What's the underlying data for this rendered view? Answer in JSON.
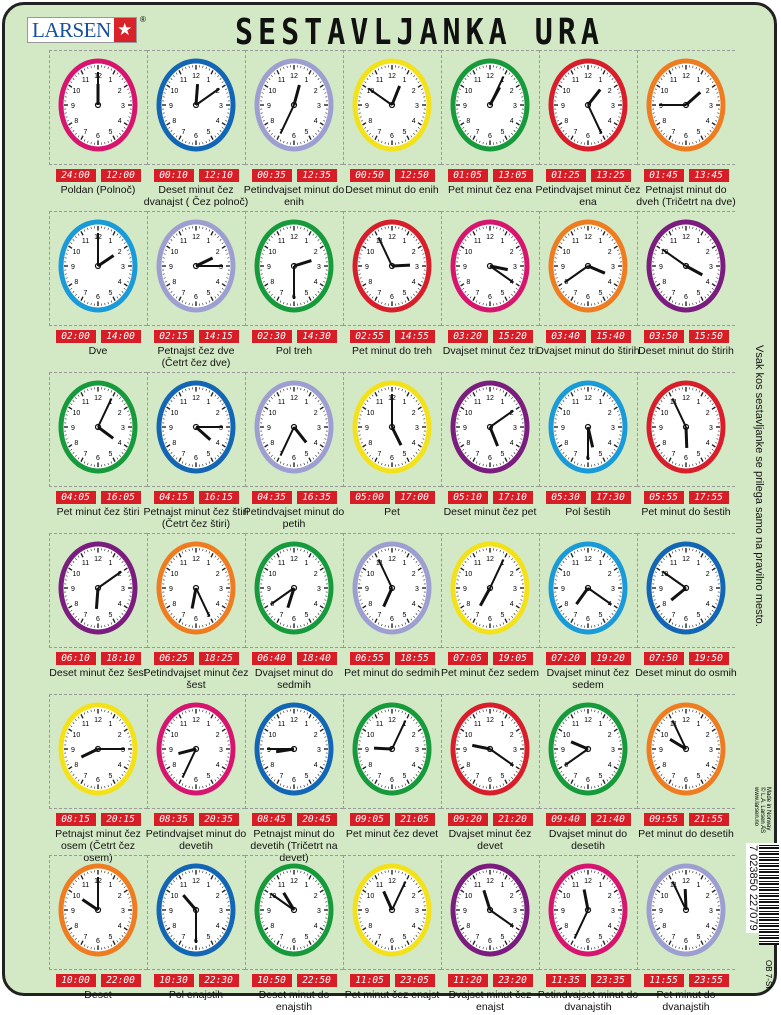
{
  "brand": {
    "name": "LARSEN",
    "mark": "®"
  },
  "title": "SESTAVLJANKA URA",
  "side_text": "Vsak kos sestavljanke se prilega samo na pravilno mesto.",
  "made_in": [
    "Made in Norway",
    "© L.A. Larsen AS",
    "www.larsen.no"
  ],
  "barcode": "7 023850 227079",
  "product_code": "OB 7-SI",
  "colors": {
    "magenta": "#d6156f",
    "blue": "#1366b3",
    "lavender": "#9c9fd0",
    "yellow": "#f3e21b",
    "green": "#179a3b",
    "red": "#d81e2a",
    "orange": "#ee7d22",
    "purple": "#7a1d7e",
    "lightblue": "#1a9ad6",
    "digital_bg": "#d71e26",
    "board": "#d3e9c5"
  },
  "clocks": [
    {
      "d24": "24:00",
      "d12": "12:00",
      "label": "Poldan (Polnoč)",
      "color": "magenta"
    },
    {
      "d24": "00:10",
      "d12": "12:10",
      "label": "Deset minut čez dvanajst ( Čez polnoč)",
      "color": "blue"
    },
    {
      "d24": "00:35",
      "d12": "12:35",
      "label": "Petindvajset minut do enih",
      "color": "lavender"
    },
    {
      "d24": "00:50",
      "d12": "12:50",
      "label": "Deset minut do enih",
      "color": "yellow"
    },
    {
      "d24": "01:05",
      "d12": "13:05",
      "label": "Pet minut čez ena",
      "color": "green"
    },
    {
      "d24": "01:25",
      "d12": "13:25",
      "label": "Petindvajset minut čez ena",
      "color": "red"
    },
    {
      "d24": "01:45",
      "d12": "13:45",
      "label": "Petnajst minut do dveh (Tričetrt na dve)",
      "color": "orange"
    },
    {
      "d24": "02:00",
      "d12": "14:00",
      "label": "Dve",
      "color": "lightblue"
    },
    {
      "d24": "02:15",
      "d12": "14:15",
      "label": "Petnajst čez dve (Četrt čez dve)",
      "color": "lavender"
    },
    {
      "d24": "02:30",
      "d12": "14:30",
      "label": "Pol treh",
      "color": "green"
    },
    {
      "d24": "02:55",
      "d12": "14:55",
      "label": "Pet minut do treh",
      "color": "red"
    },
    {
      "d24": "03:20",
      "d12": "15:20",
      "label": "Dvajset minut čez tri",
      "color": "magenta"
    },
    {
      "d24": "03:40",
      "d12": "15:40",
      "label": "Dvajset minut do štirih",
      "color": "orange"
    },
    {
      "d24": "03:50",
      "d12": "15:50",
      "label": "Deset minut do štirih",
      "color": "purple"
    },
    {
      "d24": "04:05",
      "d12": "16:05",
      "label": "Pet minut čez štiri",
      "color": "green"
    },
    {
      "d24": "04:15",
      "d12": "16:15",
      "label": "Petnajst minut čez štiri (Četrt čez štiri)",
      "color": "blue"
    },
    {
      "d24": "04:35",
      "d12": "16:35",
      "label": "Petindvajset minut do petih",
      "color": "lavender"
    },
    {
      "d24": "05:00",
      "d12": "17:00",
      "label": "Pet",
      "color": "yellow"
    },
    {
      "d24": "05:10",
      "d12": "17:10",
      "label": "Deset minut čez pet",
      "color": "purple"
    },
    {
      "d24": "05:30",
      "d12": "17:30",
      "label": "Pol šestih",
      "color": "lightblue"
    },
    {
      "d24": "05:55",
      "d12": "17:55",
      "label": "Pet minut do šestih",
      "color": "red"
    },
    {
      "d24": "06:10",
      "d12": "18:10",
      "label": "Deset minut čez šest",
      "color": "purple"
    },
    {
      "d24": "06:25",
      "d12": "18:25",
      "label": "Petindvajset minut čez šest",
      "color": "orange"
    },
    {
      "d24": "06:40",
      "d12": "18:40",
      "label": "Dvajset minut do sedmih",
      "color": "green"
    },
    {
      "d24": "06:55",
      "d12": "18:55",
      "label": "Pet minut do sedmih",
      "color": "lavender"
    },
    {
      "d24": "07:05",
      "d12": "19:05",
      "label": "Pet minut čez sedem",
      "color": "yellow"
    },
    {
      "d24": "07:20",
      "d12": "19:20",
      "label": "Dvajset minut čez sedem",
      "color": "lightblue"
    },
    {
      "d24": "07:50",
      "d12": "19:50",
      "label": "Deset minut do osmih",
      "color": "blue"
    },
    {
      "d24": "08:15",
      "d12": "20:15",
      "label": "Petnajst minut čez osem (Četrt čez osem)",
      "color": "yellow"
    },
    {
      "d24": "08:35",
      "d12": "20:35",
      "label": "Petindvajset minut do devetih",
      "color": "magenta"
    },
    {
      "d24": "08:45",
      "d12": "20:45",
      "label": "Petnajst minut do devetih (Tričetrt na devet)",
      "color": "blue"
    },
    {
      "d24": "09:05",
      "d12": "21:05",
      "label": "Pet minut čez devet",
      "color": "green"
    },
    {
      "d24": "09:20",
      "d12": "21:20",
      "label": "Dvajset minut čez devet",
      "color": "red"
    },
    {
      "d24": "09:40",
      "d12": "21:40",
      "label": "Dvajset minut do desetih",
      "color": "green"
    },
    {
      "d24": "09:55",
      "d12": "21:55",
      "label": "Pet minut do desetih",
      "color": "orange"
    },
    {
      "d24": "10:00",
      "d12": "22:00",
      "label": "Deset",
      "color": "orange"
    },
    {
      "d24": "10:30",
      "d12": "22:30",
      "label": "Pol enajstih",
      "color": "blue"
    },
    {
      "d24": "10:50",
      "d12": "22:50",
      "label": "Deset minut do enajstih",
      "color": "green"
    },
    {
      "d24": "11:05",
      "d12": "23:05",
      "label": "Pet minut čez enajst",
      "color": "yellow"
    },
    {
      "d24": "11:20",
      "d12": "23:20",
      "label": "Dvajset minut čez enajst",
      "color": "purple"
    },
    {
      "d24": "11:35",
      "d12": "23:35",
      "label": "Petindvajset minut do dvanajstih",
      "color": "magenta"
    },
    {
      "d24": "11:55",
      "d12": "23:55",
      "label": "Pet minut do dvanajstih",
      "color": "lavender"
    }
  ]
}
